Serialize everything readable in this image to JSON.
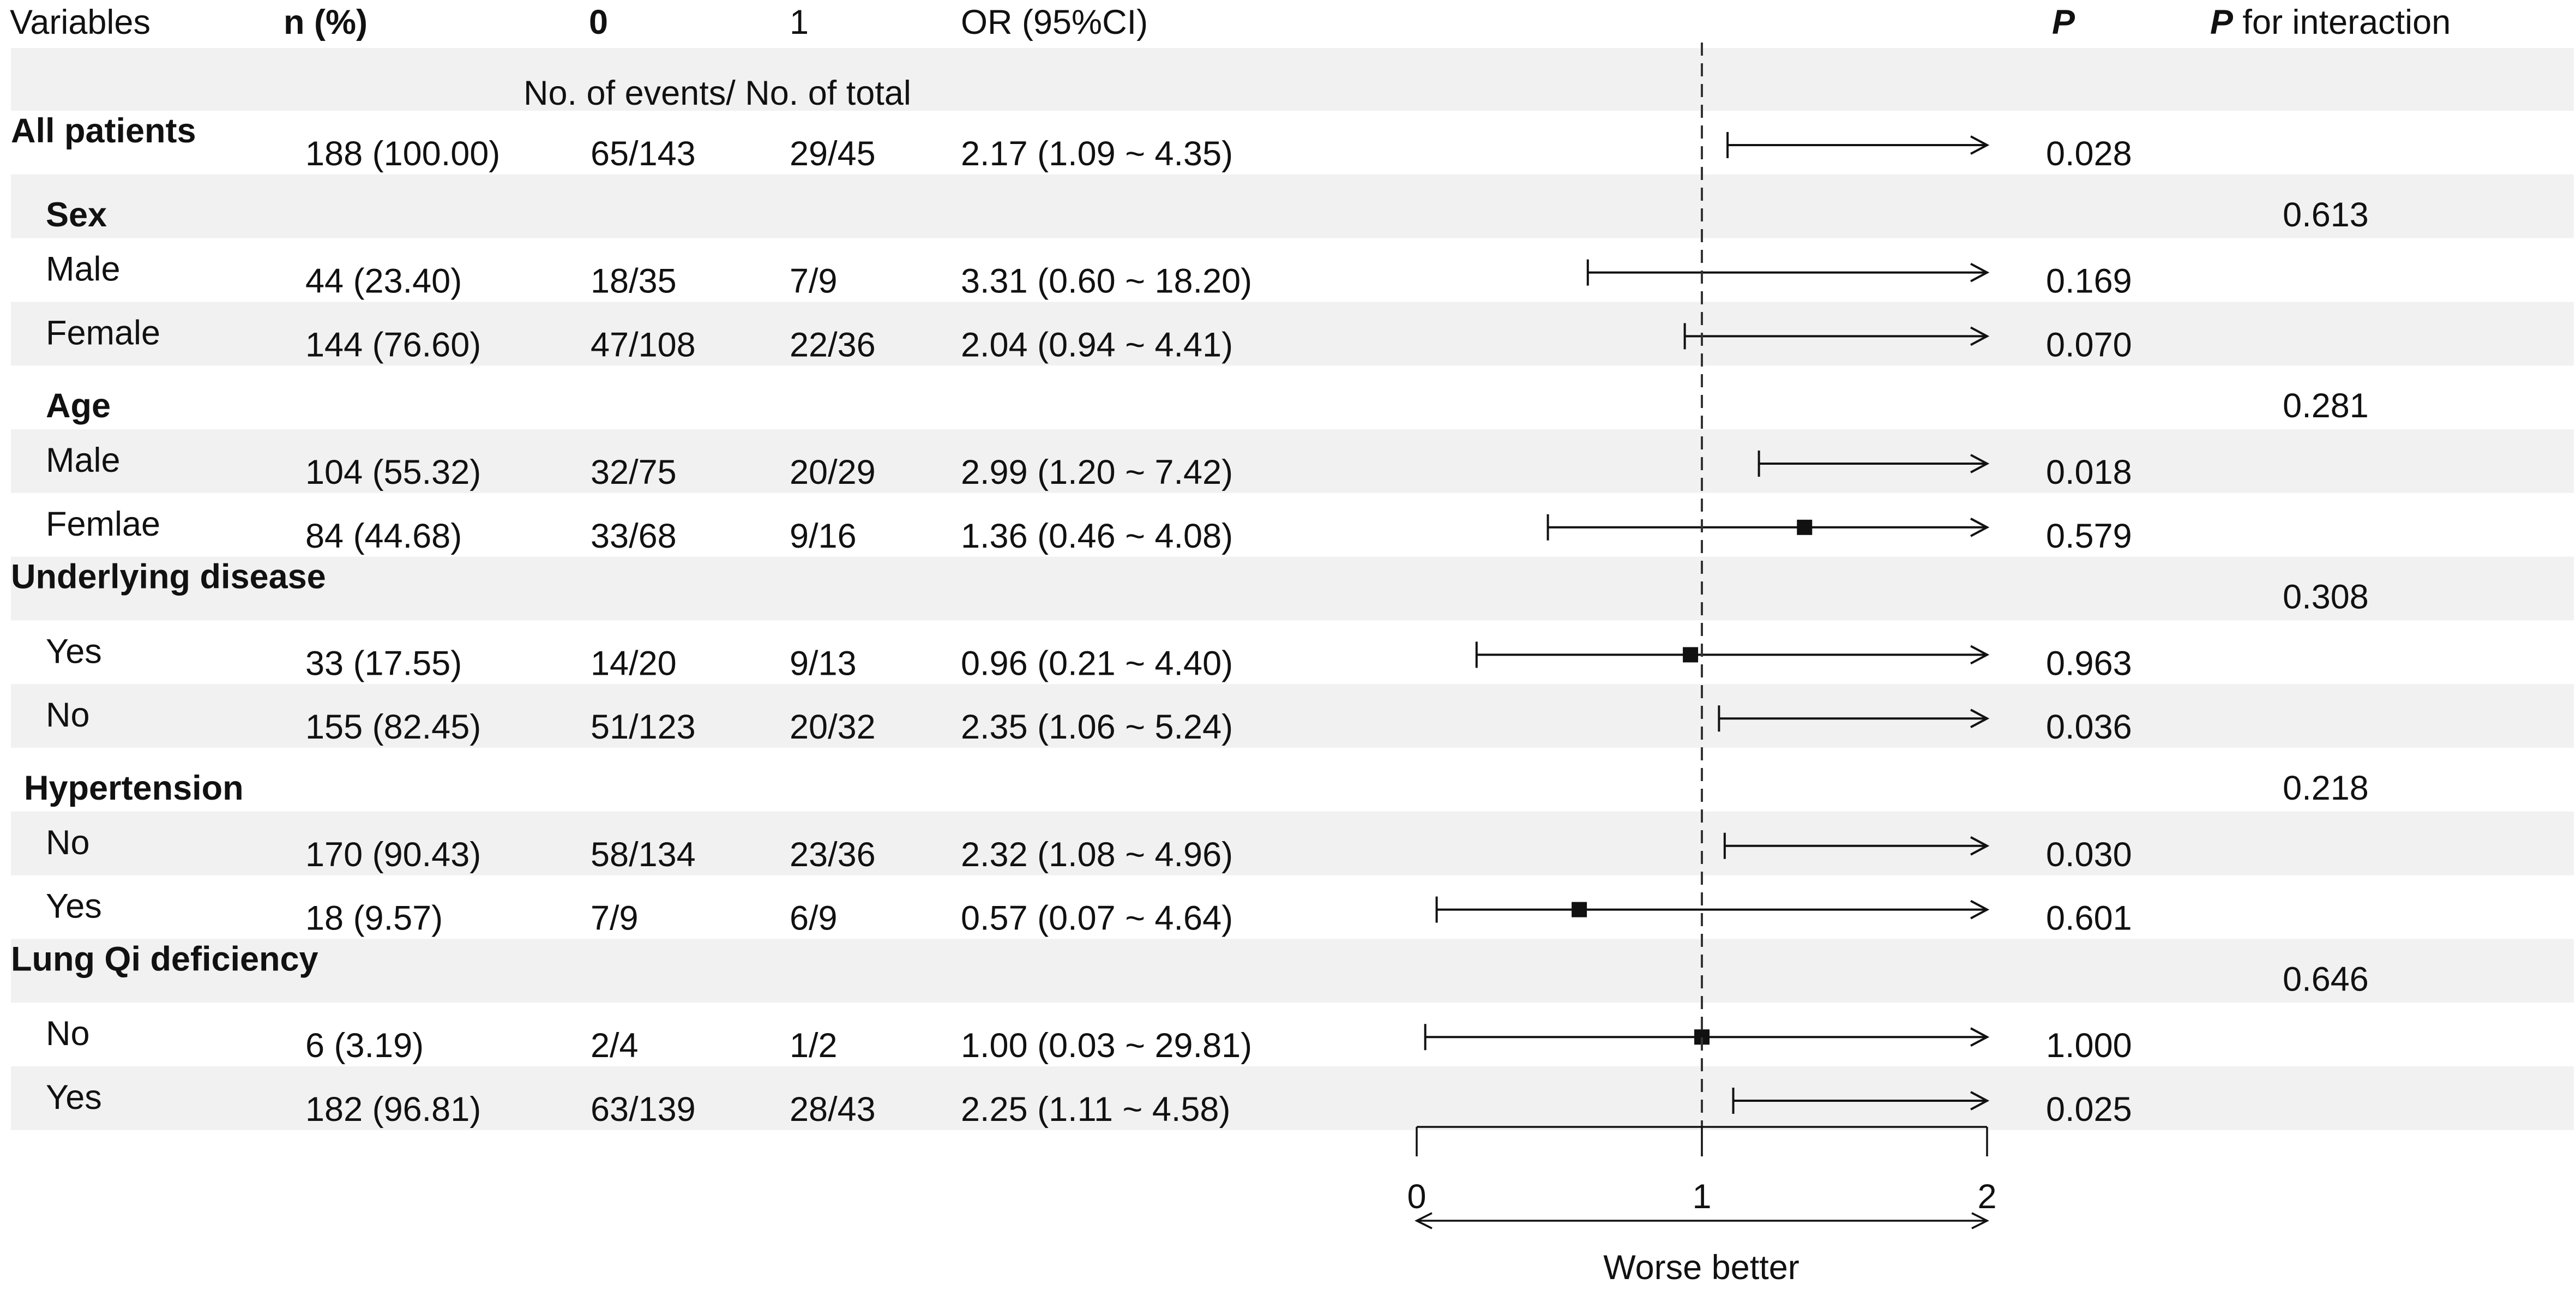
{
  "headers": {
    "variables": "Variables",
    "n": "n (%)",
    "group0": "0",
    "group1": "1",
    "or": "OR (95%CI)",
    "p": "P",
    "p_interaction_italic": "P",
    "p_interaction_rest": " for interaction",
    "subheader": "No. of events/ No. of total"
  },
  "chart_data": {
    "type": "forest",
    "reference_line": 1,
    "xlim": [
      0,
      2
    ],
    "xticks": [
      "0",
      "1",
      "2"
    ],
    "xlabel": "Worse better",
    "rows": [
      {
        "label": "All patients",
        "level": 0,
        "bold": true,
        "n": "188 (100.00)",
        "g0": "65/143",
        "g1": "29/45",
        "or_text": "2.17 (1.09 ~ 4.35)",
        "or": 2.17,
        "lo": 1.09,
        "hi": 4.35,
        "p": "0.028",
        "pint": ""
      },
      {
        "label": "Sex",
        "level": 1,
        "bold": true,
        "n": "",
        "g0": "",
        "g1": "",
        "or_text": "",
        "p": "",
        "pint": "0.613"
      },
      {
        "label": "Male",
        "level": 1,
        "bold": false,
        "n": "44 (23.40)",
        "g0": "18/35",
        "g1": "7/9",
        "or_text": "3.31 (0.60 ~ 18.20)",
        "or": 3.31,
        "lo": 0.6,
        "hi": 18.2,
        "p": "0.169",
        "pint": ""
      },
      {
        "label": "Female",
        "level": 1,
        "bold": false,
        "n": "144 (76.60)",
        "g0": "47/108",
        "g1": "22/36",
        "or_text": "2.04 (0.94 ~ 4.41)",
        "or": 2.04,
        "lo": 0.94,
        "hi": 4.41,
        "p": "0.070",
        "pint": ""
      },
      {
        "label": "Age",
        "level": 1,
        "bold": true,
        "n": "",
        "g0": "",
        "g1": "",
        "or_text": "",
        "p": "",
        "pint": "0.281"
      },
      {
        "label": "Male",
        "level": 1,
        "bold": false,
        "n": "104 (55.32)",
        "g0": "32/75",
        "g1": "20/29",
        "or_text": "2.99 (1.20 ~ 7.42)",
        "or": 2.99,
        "lo": 1.2,
        "hi": 7.42,
        "p": "0.018",
        "pint": ""
      },
      {
        "label": "Femlae",
        "level": 1,
        "bold": false,
        "n": "84 (44.68)",
        "g0": "33/68",
        "g1": "9/16",
        "or_text": "1.36 (0.46 ~ 4.08)",
        "or": 1.36,
        "lo": 0.46,
        "hi": 4.08,
        "p": "0.579",
        "pint": ""
      },
      {
        "label": "Underlying disease",
        "level": 0,
        "bold": true,
        "n": "",
        "g0": "",
        "g1": "",
        "or_text": "",
        "p": "",
        "pint": "0.308"
      },
      {
        "label": "Yes",
        "level": 1,
        "bold": false,
        "n": "33 (17.55)",
        "g0": "14/20",
        "g1": "9/13",
        "or_text": "0.96 (0.21 ~ 4.40)",
        "or": 0.96,
        "lo": 0.21,
        "hi": 4.4,
        "p": "0.963",
        "pint": ""
      },
      {
        "label": "No",
        "level": 1,
        "bold": false,
        "n": "155 (82.45)",
        "g0": "51/123",
        "g1": "20/32",
        "or_text": "2.35 (1.06 ~ 5.24)",
        "or": 2.35,
        "lo": 1.06,
        "hi": 5.24,
        "p": "0.036",
        "pint": ""
      },
      {
        "label": "Hypertension",
        "level": 2,
        "bold": true,
        "n": "",
        "g0": "",
        "g1": "",
        "or_text": "",
        "p": "",
        "pint": "0.218"
      },
      {
        "label": "No",
        "level": 1,
        "bold": false,
        "n": "170 (90.43)",
        "g0": "58/134",
        "g1": "23/36",
        "or_text": "2.32 (1.08 ~ 4.96)",
        "or": 2.32,
        "lo": 1.08,
        "hi": 4.96,
        "p": "0.030",
        "pint": ""
      },
      {
        "label": "Yes",
        "level": 1,
        "bold": false,
        "n": "18 (9.57)",
        "g0": "7/9",
        "g1": "6/9",
        "or_text": "0.57 (0.07 ~ 4.64)",
        "or": 0.57,
        "lo": 0.07,
        "hi": 4.64,
        "p": "0.601",
        "pint": ""
      },
      {
        "label": "Lung Qi deficiency",
        "level": 0,
        "bold": true,
        "n": "",
        "g0": "",
        "g1": "",
        "or_text": "",
        "p": "",
        "pint": "0.646"
      },
      {
        "label": "No",
        "level": 1,
        "bold": false,
        "n": "6 (3.19)",
        "g0": "2/4",
        "g1": "1/2",
        "or_text": "1.00 (0.03 ~ 29.81)",
        "or": 1.0,
        "lo": 0.03,
        "hi": 29.81,
        "p": "1.000",
        "pint": ""
      },
      {
        "label": "Yes",
        "level": 1,
        "bold": false,
        "n": "182 (96.81)",
        "g0": "63/139",
        "g1": "28/43",
        "or_text": "2.25 (1.11 ~ 4.58)",
        "or": 2.25,
        "lo": 1.11,
        "hi": 4.58,
        "p": "0.025",
        "pint": ""
      }
    ]
  }
}
